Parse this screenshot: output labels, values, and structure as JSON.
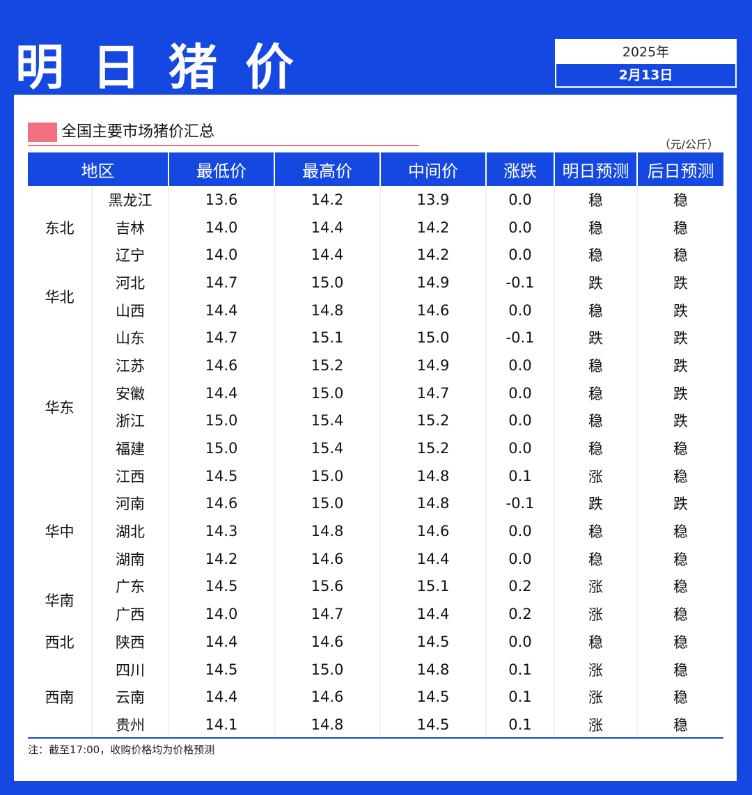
{
  "header": {
    "title": "明日猪价",
    "year": "2025年",
    "date": "2月13日"
  },
  "section": {
    "title": "全国主要市场猪价汇总",
    "unit": "（元/公斤）"
  },
  "columns": {
    "region": "地区",
    "low": "最低价",
    "high": "最高价",
    "mid": "中间价",
    "change": "涨跌",
    "tomorrow": "明日预测",
    "dayafter": "后日预测"
  },
  "colors": {
    "accent": "#1448e0",
    "up": "#e2244e",
    "down": "#17b06a",
    "marker": "#f2707f"
  },
  "groups": [
    {
      "region": "东北",
      "rows": [
        {
          "province": "黑龙江",
          "low": "13.6",
          "high": "14.2",
          "mid": "13.9",
          "change": "0.0",
          "tomorrow": "稳",
          "dayafter": "稳"
        },
        {
          "province": "吉林",
          "low": "14.0",
          "high": "14.4",
          "mid": "14.2",
          "change": "0.0",
          "tomorrow": "稳",
          "dayafter": "稳"
        },
        {
          "province": "辽宁",
          "low": "14.0",
          "high": "14.4",
          "mid": "14.2",
          "change": "0.0",
          "tomorrow": "稳",
          "dayafter": "稳"
        }
      ]
    },
    {
      "region": "华北",
      "rows": [
        {
          "province": "河北",
          "low": "14.7",
          "high": "15.0",
          "mid": "14.9",
          "change": "-0.1",
          "tomorrow": "跌",
          "dayafter": "跌"
        },
        {
          "province": "山西",
          "low": "14.4",
          "high": "14.8",
          "mid": "14.6",
          "change": "0.0",
          "tomorrow": "稳",
          "dayafter": "跌"
        }
      ]
    },
    {
      "region": "华东",
      "rows": [
        {
          "province": "山东",
          "low": "14.7",
          "high": "15.1",
          "mid": "15.0",
          "change": "-0.1",
          "tomorrow": "跌",
          "dayafter": "跌"
        },
        {
          "province": "江苏",
          "low": "14.6",
          "high": "15.2",
          "mid": "14.9",
          "change": "0.0",
          "tomorrow": "稳",
          "dayafter": "跌"
        },
        {
          "province": "安徽",
          "low": "14.4",
          "high": "15.0",
          "mid": "14.7",
          "change": "0.0",
          "tomorrow": "稳",
          "dayafter": "跌"
        },
        {
          "province": "浙江",
          "low": "15.0",
          "high": "15.4",
          "mid": "15.2",
          "change": "0.0",
          "tomorrow": "稳",
          "dayafter": "跌"
        },
        {
          "province": "福建",
          "low": "15.0",
          "high": "15.4",
          "mid": "15.2",
          "change": "0.0",
          "tomorrow": "稳",
          "dayafter": "稳"
        },
        {
          "province": "江西",
          "low": "14.5",
          "high": "15.0",
          "mid": "14.8",
          "change": "0.1",
          "tomorrow": "涨",
          "dayafter": "稳"
        }
      ]
    },
    {
      "region": "华中",
      "rows": [
        {
          "province": "河南",
          "low": "14.6",
          "high": "15.0",
          "mid": "14.8",
          "change": "-0.1",
          "tomorrow": "跌",
          "dayafter": "跌"
        },
        {
          "province": "湖北",
          "low": "14.3",
          "high": "14.8",
          "mid": "14.6",
          "change": "0.0",
          "tomorrow": "稳",
          "dayafter": "稳"
        },
        {
          "province": "湖南",
          "low": "14.2",
          "high": "14.6",
          "mid": "14.4",
          "change": "0.0",
          "tomorrow": "稳",
          "dayafter": "稳"
        }
      ]
    },
    {
      "region": "华南",
      "rows": [
        {
          "province": "广东",
          "low": "14.5",
          "high": "15.6",
          "mid": "15.1",
          "change": "0.2",
          "tomorrow": "涨",
          "dayafter": "稳"
        },
        {
          "province": "广西",
          "low": "14.0",
          "high": "14.7",
          "mid": "14.4",
          "change": "0.2",
          "tomorrow": "涨",
          "dayafter": "稳"
        }
      ]
    },
    {
      "region": "西北",
      "rows": [
        {
          "province": "陕西",
          "low": "14.4",
          "high": "14.6",
          "mid": "14.5",
          "change": "0.0",
          "tomorrow": "稳",
          "dayafter": "稳"
        }
      ]
    },
    {
      "region": "西南",
      "rows": [
        {
          "province": "四川",
          "low": "14.5",
          "high": "15.0",
          "mid": "14.8",
          "change": "0.1",
          "tomorrow": "涨",
          "dayafter": "稳"
        },
        {
          "province": "云南",
          "low": "14.4",
          "high": "14.6",
          "mid": "14.5",
          "change": "0.1",
          "tomorrow": "涨",
          "dayafter": "稳"
        },
        {
          "province": "贵州",
          "low": "14.1",
          "high": "14.8",
          "mid": "14.5",
          "change": "0.1",
          "tomorrow": "涨",
          "dayafter": "稳"
        }
      ]
    }
  ],
  "note": "注：截至17:00，收购价格均为价格预测"
}
